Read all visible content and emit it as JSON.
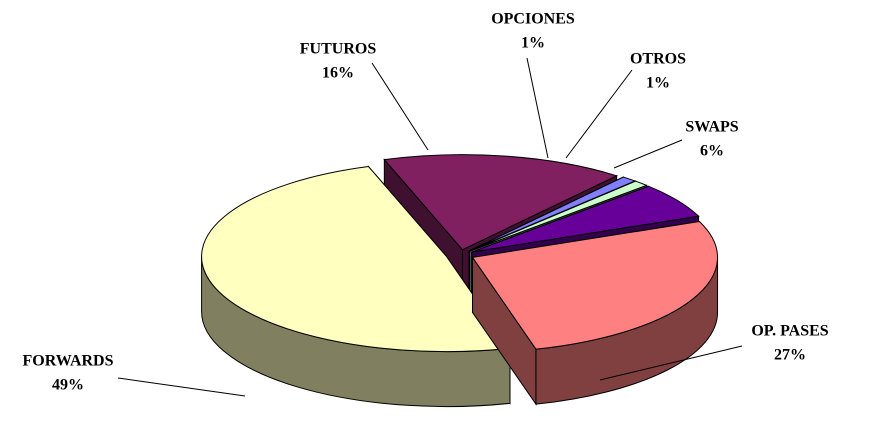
{
  "chart_data": {
    "type": "pie",
    "categories": [
      "FORWARDS",
      "FUTUROS",
      "OPCIONES",
      "OTROS",
      "SWAPS",
      "OP. PASES"
    ],
    "values": [
      49,
      16,
      1,
      1,
      6,
      27
    ],
    "value_labels": [
      "49%",
      "16%",
      "1%",
      "1%",
      "6%",
      "27%"
    ],
    "colors": [
      "#ffffc0",
      "#802060",
      "#8080ff",
      "#ccffcc",
      "#660099",
      "#ff8080"
    ]
  }
}
